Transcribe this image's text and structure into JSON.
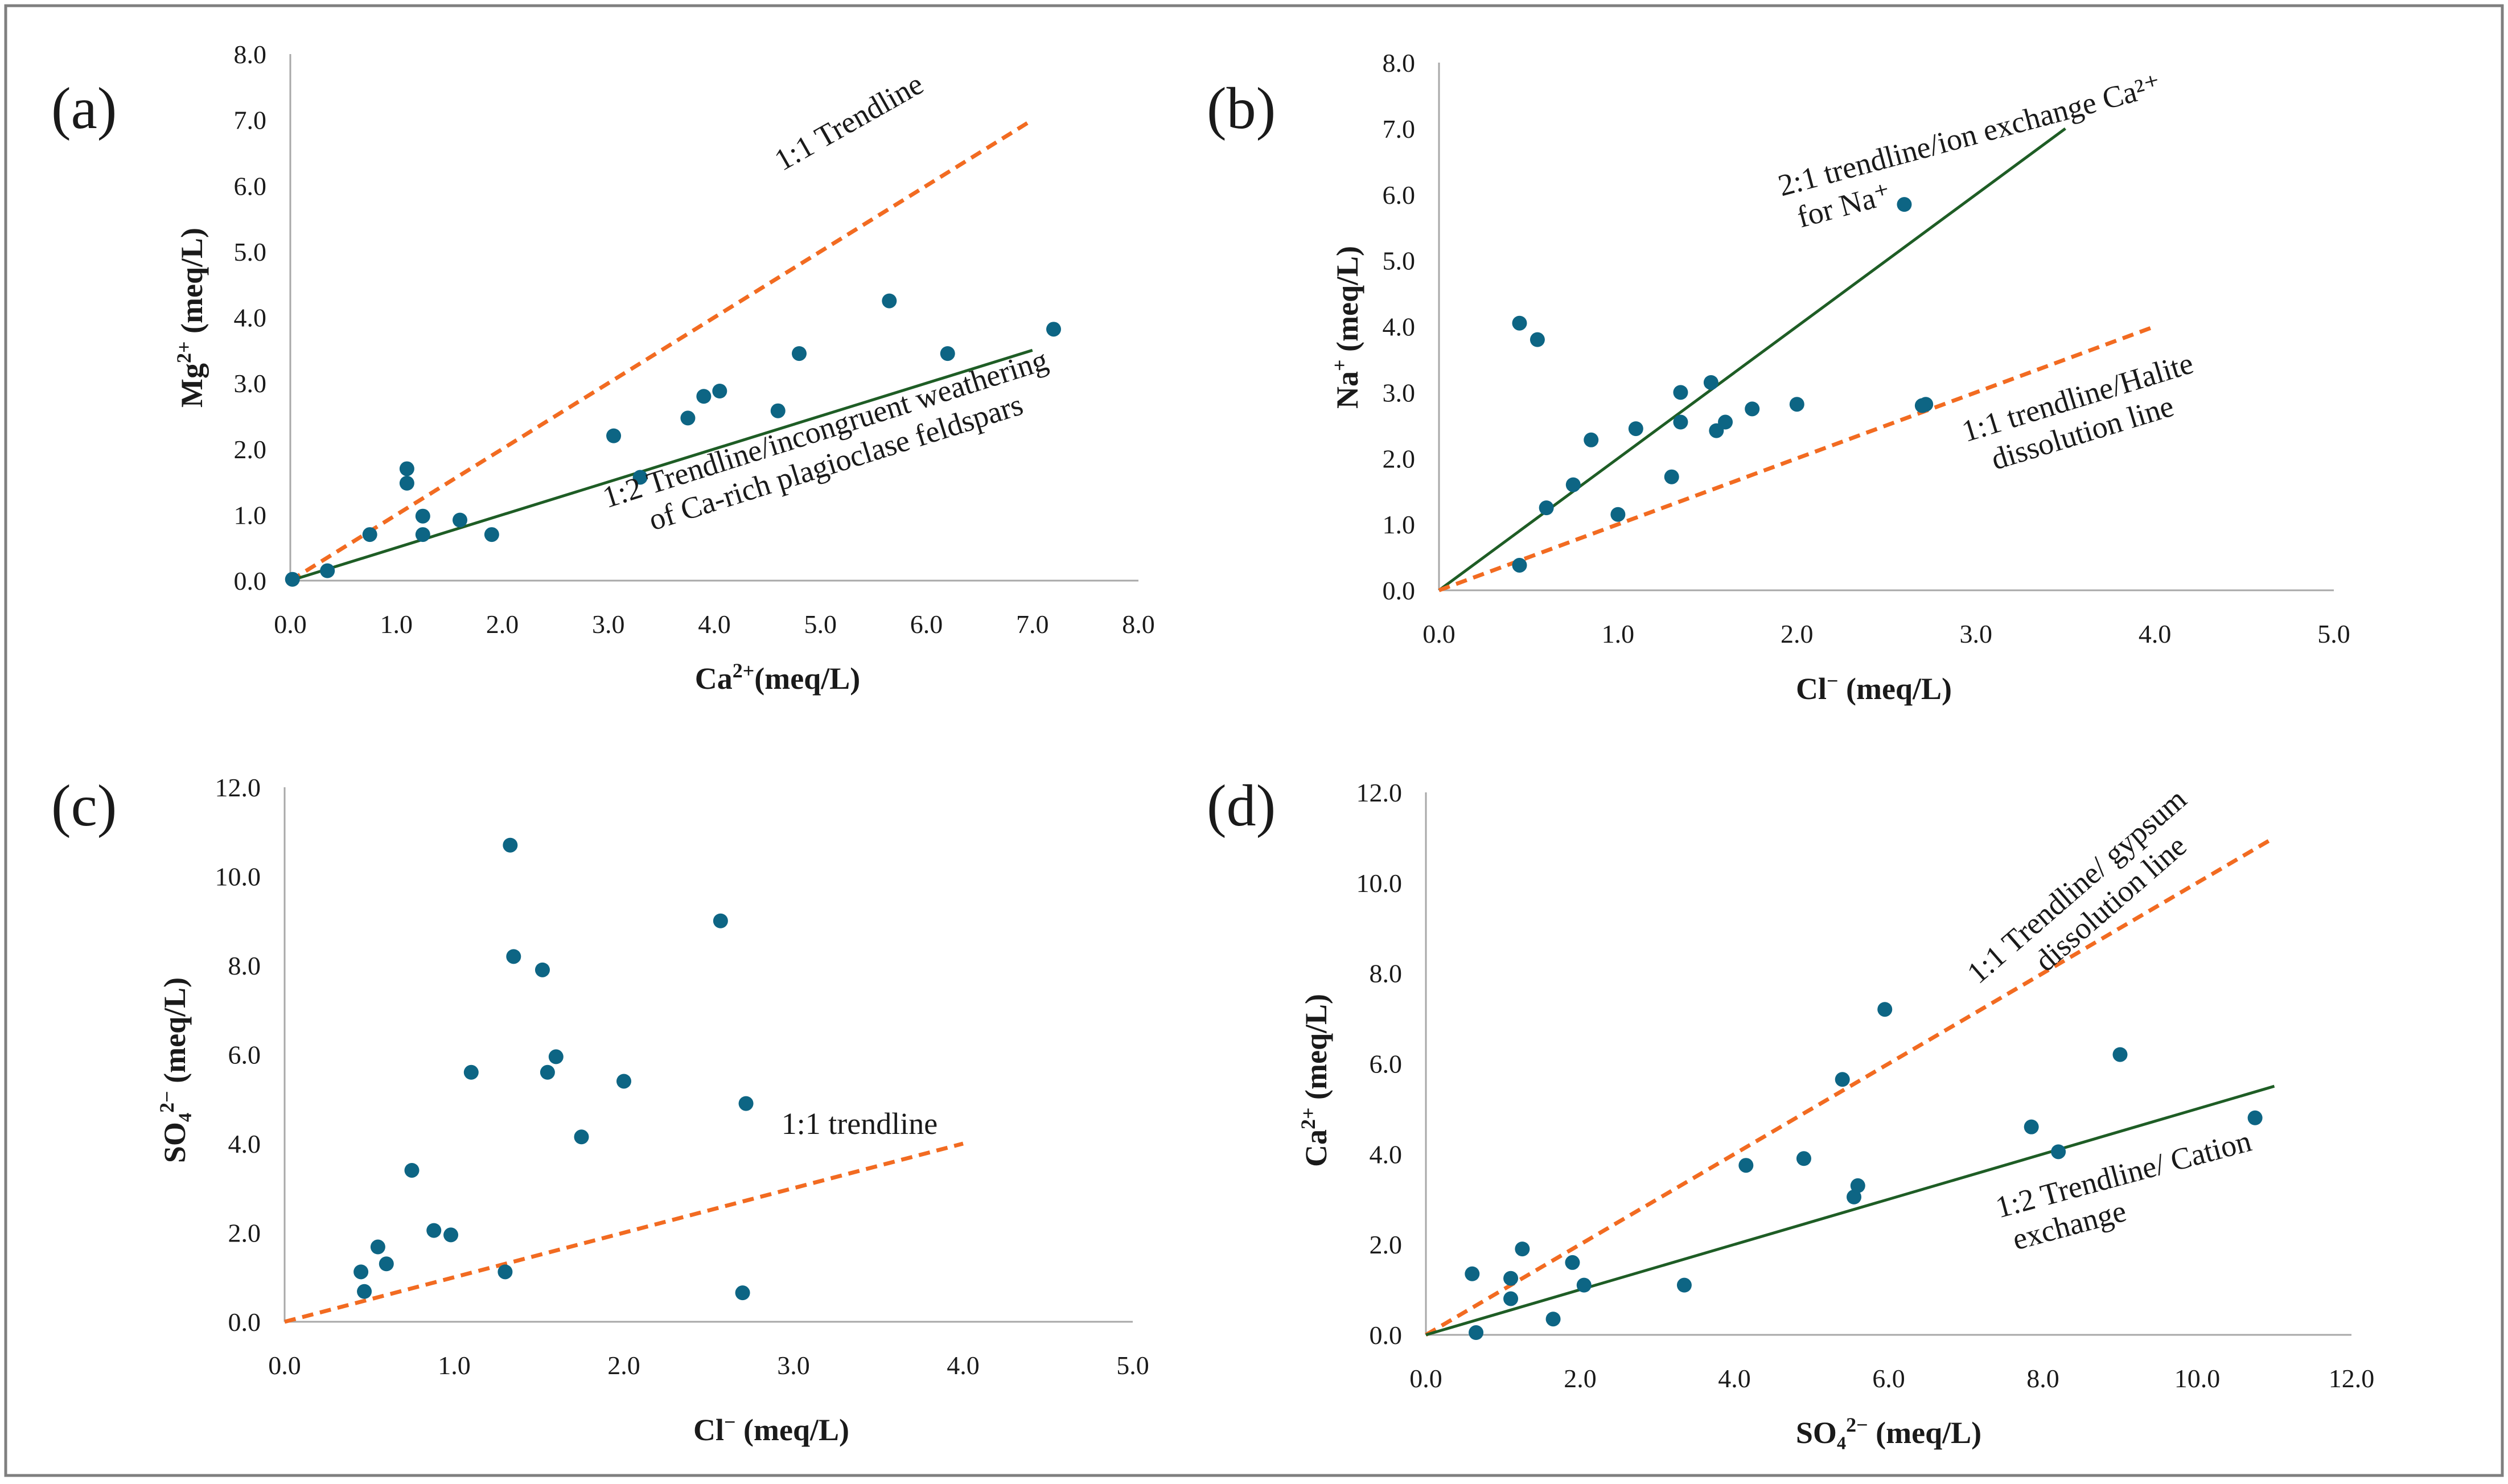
{
  "colors": {
    "point": "#0d6584",
    "dashed": "#f26b21",
    "solid": "#1e5d25",
    "axis": "#a8a8a8",
    "border": "#7f7f7f"
  },
  "chart_data": [
    {
      "type": "scatter",
      "panel_label": "(a)",
      "xlabel": {
        "main": "Ca",
        "sup": "2+",
        "rest": "(meq/L)"
      },
      "ylabel": {
        "main": "Mg",
        "sup": "2+",
        "rest": " (meq/L)"
      },
      "xlim": [
        0,
        8
      ],
      "ylim": [
        0,
        8
      ],
      "xticks": [
        "0.0",
        "1.0",
        "2.0",
        "3.0",
        "4.0",
        "5.0",
        "6.0",
        "7.0",
        "8.0"
      ],
      "yticks": [
        "0.0",
        "1.0",
        "2.0",
        "3.0",
        "4.0",
        "5.0",
        "6.0",
        "7.0",
        "8.0"
      ],
      "points": [
        [
          0.02,
          0.02
        ],
        [
          0.35,
          0.15
        ],
        [
          0.75,
          0.7
        ],
        [
          1.1,
          1.7
        ],
        [
          1.1,
          1.48
        ],
        [
          1.25,
          0.98
        ],
        [
          1.25,
          0.7
        ],
        [
          1.6,
          0.92
        ],
        [
          1.9,
          0.7
        ],
        [
          3.05,
          2.2
        ],
        [
          3.3,
          1.57
        ],
        [
          3.75,
          2.47
        ],
        [
          3.9,
          2.8
        ],
        [
          4.05,
          2.88
        ],
        [
          4.6,
          2.58
        ],
        [
          4.8,
          3.45
        ],
        [
          5.65,
          4.25
        ],
        [
          6.2,
          3.45
        ],
        [
          7.2,
          3.82
        ]
      ],
      "lines": [
        {
          "style": "dashed",
          "from": [
            0,
            0
          ],
          "to": [
            7,
            7
          ],
          "label": [
            "1:1 Trendline"
          ]
        },
        {
          "style": "solid",
          "from": [
            0,
            0
          ],
          "to": [
            7,
            3.5
          ],
          "label": [
            "1:2 Trendline/incongruent weathering",
            "of Ca-rich plagioclase feldspars"
          ]
        }
      ]
    },
    {
      "type": "scatter",
      "panel_label": "(b)",
      "xlabel": {
        "main": "Cl",
        "sup": "−",
        "rest": " (meq/L)"
      },
      "ylabel": {
        "main": "Na",
        "sup": "+",
        "rest": " (meq/L)"
      },
      "xlim": [
        0,
        5
      ],
      "ylim": [
        0,
        8
      ],
      "xticks": [
        "0.0",
        "1.0",
        "2.0",
        "3.0",
        "4.0",
        "5.0"
      ],
      "yticks": [
        "0.0",
        "1.0",
        "2.0",
        "3.0",
        "4.0",
        "5.0",
        "6.0",
        "7.0",
        "8.0"
      ],
      "points": [
        [
          0.45,
          0.38
        ],
        [
          0.45,
          4.05
        ],
        [
          0.55,
          3.8
        ],
        [
          0.6,
          1.25
        ],
        [
          0.75,
          1.6
        ],
        [
          0.85,
          2.28
        ],
        [
          1.0,
          1.15
        ],
        [
          1.1,
          2.45
        ],
        [
          1.3,
          1.72
        ],
        [
          1.35,
          3.0
        ],
        [
          1.35,
          2.55
        ],
        [
          1.52,
          3.15
        ],
        [
          1.55,
          2.42
        ],
        [
          1.6,
          2.55
        ],
        [
          1.75,
          2.75
        ],
        [
          2.0,
          2.82
        ],
        [
          2.6,
          5.85
        ],
        [
          2.7,
          2.8
        ],
        [
          2.72,
          2.82
        ]
      ],
      "lines": [
        {
          "style": "solid",
          "from": [
            0,
            0
          ],
          "to": [
            3.5,
            7
          ],
          "label": [
            "2:1 trendline/ion exchange Ca²⁺",
            "for Na⁺"
          ]
        },
        {
          "style": "dashed",
          "from": [
            0,
            0
          ],
          "to": [
            4,
            4
          ],
          "label": [
            "1:1 trendline/Halite",
            "dissolution line"
          ]
        }
      ]
    },
    {
      "type": "scatter",
      "panel_label": "(c)",
      "xlabel": {
        "main": "Cl",
        "sup": "−",
        "rest": " (meq/L)"
      },
      "ylabel": {
        "main": "SO₄",
        "sup": "2−",
        "rest": "  (meq/L)"
      },
      "xlim": [
        0,
        5
      ],
      "ylim": [
        0,
        12
      ],
      "xticks": [
        "0.0",
        "1.0",
        "2.0",
        "3.0",
        "4.0",
        "5.0"
      ],
      "yticks": [
        "0.0",
        "2.0",
        "4.0",
        "6.0",
        "8.0",
        "10.0",
        "12.0"
      ],
      "points": [
        [
          0.45,
          1.12
        ],
        [
          0.47,
          0.68
        ],
        [
          0.55,
          1.68
        ],
        [
          0.6,
          1.3
        ],
        [
          0.75,
          3.4
        ],
        [
          0.88,
          2.05
        ],
        [
          0.98,
          1.95
        ],
        [
          1.1,
          5.6
        ],
        [
          1.3,
          1.12
        ],
        [
          1.33,
          10.7
        ],
        [
          1.35,
          8.2
        ],
        [
          1.52,
          7.9
        ],
        [
          1.55,
          5.6
        ],
        [
          1.6,
          5.95
        ],
        [
          1.75,
          4.15
        ],
        [
          2.0,
          5.4
        ],
        [
          2.57,
          9.0
        ],
        [
          2.7,
          0.65
        ],
        [
          2.72,
          4.9
        ]
      ],
      "lines": [
        {
          "style": "dashed",
          "from": [
            0,
            0
          ],
          "to": [
            4,
            4
          ],
          "label": [
            "1:1 trendline"
          ]
        }
      ]
    },
    {
      "type": "scatter",
      "panel_label": "(d)",
      "xlabel": {
        "main": "SO₄",
        "sup": "2−",
        "rest": " (meq/L)"
      },
      "ylabel": {
        "main": "Ca",
        "sup": "2+",
        "rest": " (meq/L)"
      },
      "xlim": [
        0,
        12
      ],
      "ylim": [
        0,
        12
      ],
      "xticks": [
        "0.0",
        "2.0",
        "4.0",
        "6.0",
        "8.0",
        "10.0",
        "12.0"
      ],
      "yticks": [
        "0.0",
        "2.0",
        "4.0",
        "6.0",
        "8.0",
        "10.0",
        "12.0"
      ],
      "points": [
        [
          0.6,
          1.35
        ],
        [
          0.65,
          0.05
        ],
        [
          1.1,
          1.25
        ],
        [
          1.1,
          0.8
        ],
        [
          1.25,
          1.9
        ],
        [
          1.65,
          0.35
        ],
        [
          1.9,
          1.6
        ],
        [
          2.05,
          1.1
        ],
        [
          3.35,
          1.1
        ],
        [
          4.15,
          3.75
        ],
        [
          4.9,
          3.9
        ],
        [
          5.4,
          5.65
        ],
        [
          5.55,
          3.05
        ],
        [
          5.6,
          3.3
        ],
        [
          5.95,
          7.2
        ],
        [
          7.85,
          4.6
        ],
        [
          8.2,
          4.05
        ],
        [
          9.0,
          6.2
        ],
        [
          10.75,
          4.8
        ]
      ],
      "lines": [
        {
          "style": "dashed",
          "from": [
            0,
            0
          ],
          "to": [
            11,
            11
          ],
          "label": [
            "1:1 Trendline/ gypsum",
            "dissolution line"
          ]
        },
        {
          "style": "solid",
          "from": [
            0,
            0
          ],
          "to": [
            11,
            5.5
          ],
          "label": [
            "1:2 Trendline/ Cation",
            "exchange"
          ]
        }
      ]
    }
  ]
}
